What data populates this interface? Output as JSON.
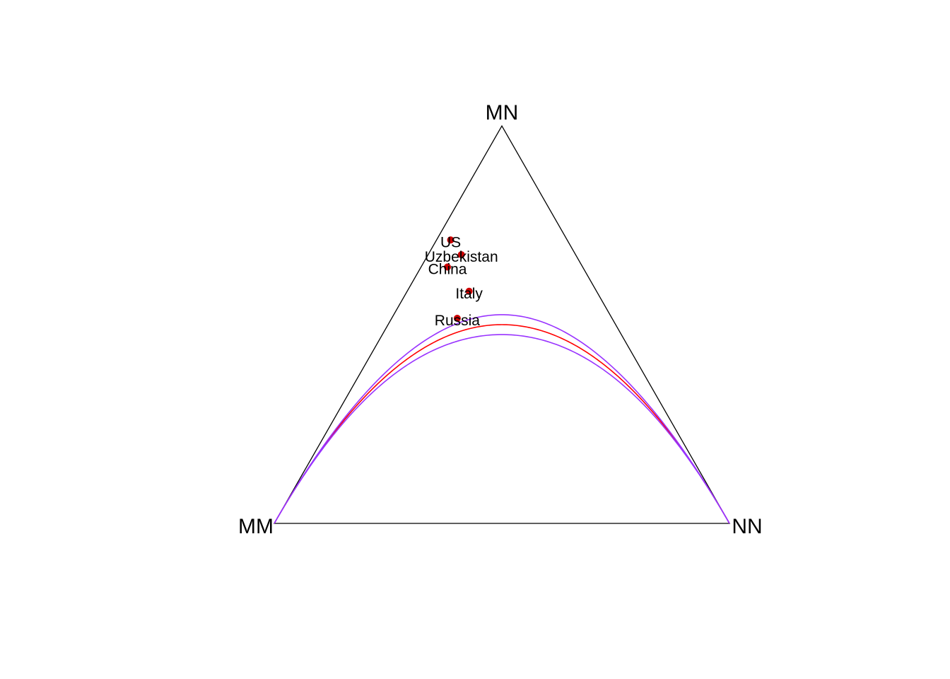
{
  "chart_data": {
    "type": "scatter",
    "coordinate_system": "ternary",
    "vertices": {
      "left": "MM",
      "top": "MN",
      "right": "NN"
    },
    "points": [
      {
        "label": "US",
        "MM": 0.256,
        "MN": 0.713,
        "NN": 0.031
      },
      {
        "label": "Uzbekistan",
        "MM": 0.251,
        "MN": 0.676,
        "NN": 0.073
      },
      {
        "label": "China",
        "MM": 0.297,
        "MN": 0.645,
        "NN": 0.058
      },
      {
        "label": "Italy",
        "MM": 0.28,
        "MN": 0.584,
        "NN": 0.136
      },
      {
        "label": "Russia",
        "MM": 0.34,
        "MN": 0.516,
        "NN": 0.144
      }
    ],
    "curves": [
      {
        "kind": "hardy-weinberg-equilibrium",
        "heterozygosity_peak": 0.5
      },
      {
        "kind": "upper-limit",
        "heterozygosity_peak": 0.525
      },
      {
        "kind": "lower-limit",
        "heterozygosity_peak": 0.475
      }
    ],
    "colors": {
      "axes": "#000000",
      "points": "#cc0000",
      "hwe_curve": "#ff0000",
      "limit_curves": "#9933ff"
    }
  }
}
